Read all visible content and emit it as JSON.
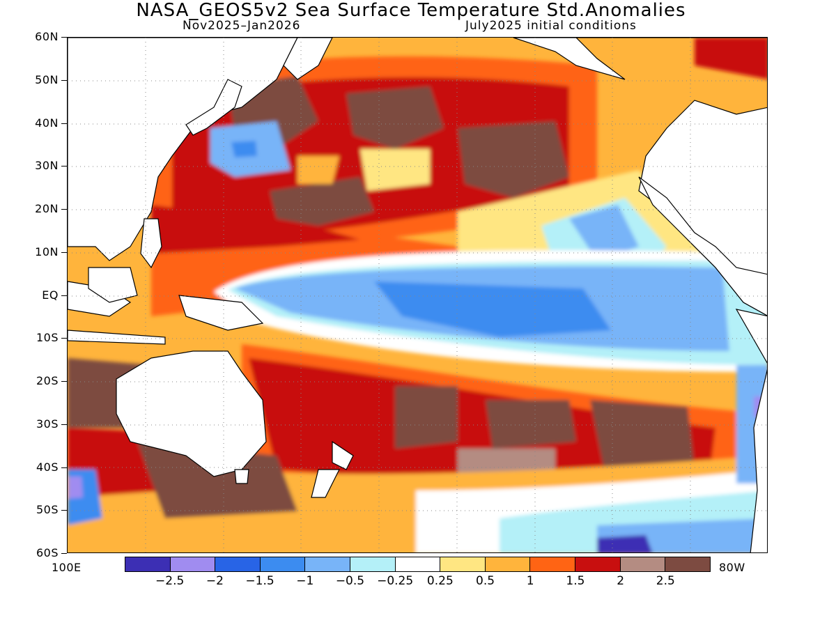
{
  "title": "NASA_GEOS5v2 Sea Surface Temperature Std.Anomalies",
  "subtitle_left": "Nov2025–Jan2026",
  "subtitle_right": "July2025 initial conditions",
  "map": {
    "lon_min_label": "100E",
    "lon_max_label": "80W",
    "lat_labels": [
      "60N",
      "50N",
      "40N",
      "30N",
      "20N",
      "10N",
      "EQ",
      "10S",
      "20S",
      "30S",
      "40S",
      "50S",
      "60S"
    ],
    "grid": "dotted",
    "land_color": "#ffffff",
    "coastline_color": "#000000"
  },
  "colorbar": {
    "colors": [
      "#3c2fb4",
      "#a08cf0",
      "#2864e6",
      "#3c8cf0",
      "#78b4f8",
      "#b4f0f8",
      "#ffffff",
      "#ffe682",
      "#ffb43c",
      "#ff6414",
      "#c80f0f",
      "#b48c82",
      "#7d4b41"
    ],
    "labels": [
      "−2.5",
      "−2",
      "−1.5",
      "−1",
      "−0.5",
      "−0.25",
      "0.25",
      "0.5",
      "1",
      "1.5",
      "2",
      "2.5"
    ]
  }
}
